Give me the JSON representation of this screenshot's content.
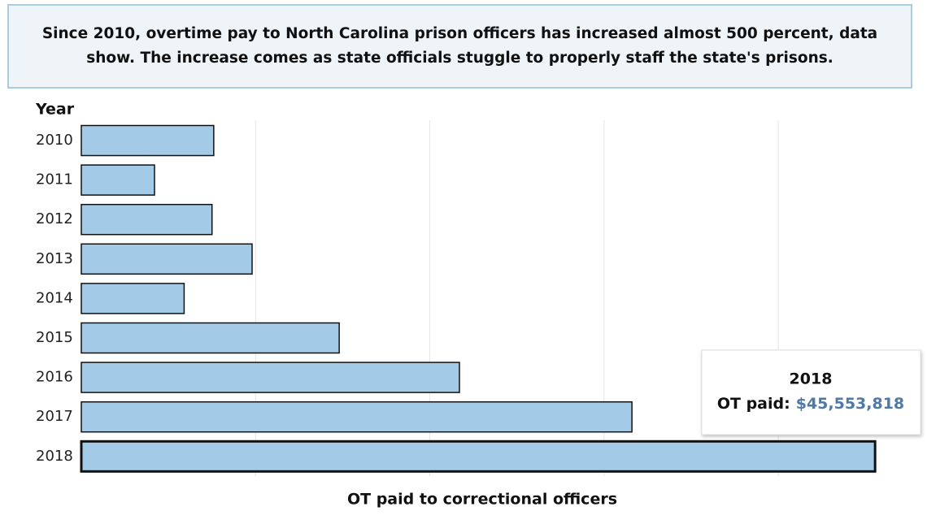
{
  "chart_data": {
    "type": "bar",
    "orientation": "horizontal",
    "title": "Since 2010, overtime pay to North Carolina prison officers has increased almost 500 percent, data show. The increase comes as state officials stuggle to properly staff the state's prisons.",
    "y_label": "Year",
    "x_label": "OT paid to correctional officers",
    "categories": [
      "2010",
      "2011",
      "2012",
      "2013",
      "2014",
      "2015",
      "2016",
      "2017",
      "2018"
    ],
    "values": [
      7600000,
      4200000,
      7500000,
      9800000,
      5900000,
      14800000,
      21700000,
      31600000,
      45553818
    ],
    "value_labels": [
      null,
      null,
      null,
      null,
      null,
      null,
      null,
      null,
      "$45,553,818"
    ],
    "color": "#a3cbe8",
    "xlim": [
      0,
      47600000
    ],
    "xticks": [
      10000000,
      20000000,
      30000000,
      40000000
    ],
    "grid": true,
    "tooltip": {
      "label": "OT paid:"
    }
  }
}
